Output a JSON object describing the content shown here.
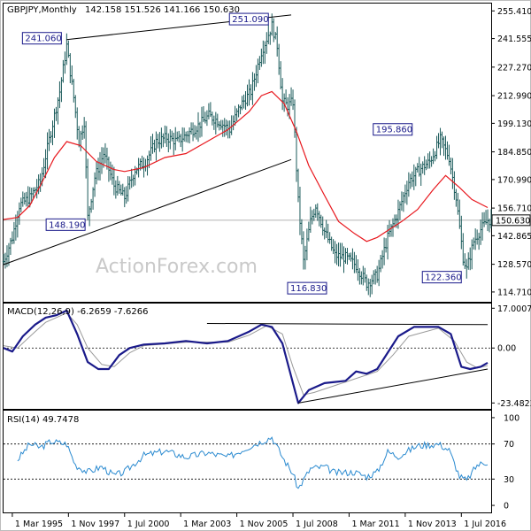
{
  "chart_data": {
    "type": "line",
    "instrument_header": "GBPJPY,Monthly",
    "ohlc_header": "142.158 151.526 141.166 150.630",
    "watermark": "ActionForex.com",
    "time_axis": [
      "1 Mar 1995",
      "1 Nov 1997",
      "1 Jul 2000",
      "1 Mar 2003",
      "1 Nov 2005",
      "1 Jul 2008",
      "1 Mar 2011",
      "1 Nov 2013",
      "1 Jul 2016"
    ],
    "price_panel": {
      "ylim": [
        109.8,
        259.1
      ],
      "y_ticks": [
        "255.410",
        "241.555",
        "227.270",
        "212.990",
        "199.130",
        "184.850",
        "170.990",
        "156.710",
        "142.865",
        "128.570",
        "114.710"
      ],
      "last_value": "150.630",
      "candle_color": "#1a5a5a",
      "ma_color": "#e8181e",
      "annotations": [
        {
          "label": "241.060",
          "x": "1997-10",
          "y": 241.06
        },
        {
          "label": "251.090",
          "x": "2007-07",
          "y": 251.09
        },
        {
          "label": "148.190",
          "x": "1998-10",
          "y": 148.19
        },
        {
          "label": "116.830",
          "x": "2008-10",
          "y": 116.83
        },
        {
          "label": "195.860",
          "x": "2014-07",
          "y": 195.86
        },
        {
          "label": "122.360",
          "x": "2016-10",
          "y": 122.36
        }
      ],
      "trendlines": [
        {
          "x1": "1997-10",
          "y1": 241.06,
          "x2": "2008-06",
          "y2": 253.4
        },
        {
          "x1": "1994-10",
          "y1": 128.4,
          "x2": "2008-06",
          "y2": 181.0
        }
      ],
      "series": [
        {
          "name": "close",
          "values": [
            {
              "x": "1994-10",
              "y": 130.0
            },
            {
              "x": "1995-03",
              "y": 142.0
            },
            {
              "x": "1995-07",
              "y": 158.0
            },
            {
              "x": "1996-01",
              "y": 162.0
            },
            {
              "x": "1996-07",
              "y": 170.0
            },
            {
              "x": "1997-01",
              "y": 195.0
            },
            {
              "x": "1997-06",
              "y": 215.0
            },
            {
              "x": "1997-10",
              "y": 238.0
            },
            {
              "x": "1998-02",
              "y": 212.0
            },
            {
              "x": "1998-05",
              "y": 190.0
            },
            {
              "x": "1998-08",
              "y": 200.0
            },
            {
              "x": "1998-10",
              "y": 152.0
            },
            {
              "x": "1999-02",
              "y": 172.0
            },
            {
              "x": "1999-07",
              "y": 184.0
            },
            {
              "x": "2000-01",
              "y": 168.0
            },
            {
              "x": "2000-07",
              "y": 162.0
            },
            {
              "x": "2001-01",
              "y": 176.0
            },
            {
              "x": "2001-07",
              "y": 180.0
            },
            {
              "x": "2002-01",
              "y": 190.0
            },
            {
              "x": "2002-07",
              "y": 192.0
            },
            {
              "x": "2003-01",
              "y": 190.0
            },
            {
              "x": "2003-07",
              "y": 194.0
            },
            {
              "x": "2004-01",
              "y": 198.0
            },
            {
              "x": "2004-07",
              "y": 203.0
            },
            {
              "x": "2005-01",
              "y": 200.0
            },
            {
              "x": "2005-07",
              "y": 196.0
            },
            {
              "x": "2006-01",
              "y": 208.0
            },
            {
              "x": "2006-07",
              "y": 215.0
            },
            {
              "x": "2007-01",
              "y": 235.0
            },
            {
              "x": "2007-07",
              "y": 248.0
            },
            {
              "x": "2007-10",
              "y": 238.0
            },
            {
              "x": "2008-01",
              "y": 210.0
            },
            {
              "x": "2008-04",
              "y": 208.0
            },
            {
              "x": "2008-07",
              "y": 210.0
            },
            {
              "x": "2008-10",
              "y": 160.0
            },
            {
              "x": "2009-01",
              "y": 130.0
            },
            {
              "x": "2009-05",
              "y": 150.0
            },
            {
              "x": "2009-08",
              "y": 158.0
            },
            {
              "x": "2010-01",
              "y": 145.0
            },
            {
              "x": "2010-07",
              "y": 133.0
            },
            {
              "x": "2011-01",
              "y": 132.0
            },
            {
              "x": "2011-07",
              "y": 128.0
            },
            {
              "x": "2012-01",
              "y": 119.0
            },
            {
              "x": "2012-07",
              "y": 123.0
            },
            {
              "x": "2013-01",
              "y": 142.0
            },
            {
              "x": "2013-07",
              "y": 155.0
            },
            {
              "x": "2014-01",
              "y": 170.0
            },
            {
              "x": "2014-07",
              "y": 176.0
            },
            {
              "x": "2015-01",
              "y": 180.0
            },
            {
              "x": "2015-07",
              "y": 191.0
            },
            {
              "x": "2015-12",
              "y": 182.0
            },
            {
              "x": "2016-04",
              "y": 162.0
            },
            {
              "x": "2016-08",
              "y": 132.0
            },
            {
              "x": "2016-10",
              "y": 126.0
            },
            {
              "x": "2017-02",
              "y": 140.0
            },
            {
              "x": "2017-06",
              "y": 146.0
            },
            {
              "x": "2017-10",
              "y": 150.6
            }
          ]
        },
        {
          "name": "moving average",
          "values": [
            {
              "x": "1994-10",
              "y": 151.0
            },
            {
              "x": "1995-06",
              "y": 152.0
            },
            {
              "x": "1996-01",
              "y": 158.0
            },
            {
              "x": "1996-07",
              "y": 168.0
            },
            {
              "x": "1997-03",
              "y": 182.0
            },
            {
              "x": "1997-10",
              "y": 190.0
            },
            {
              "x": "1998-06",
              "y": 188.0
            },
            {
              "x": "1999-03",
              "y": 180.0
            },
            {
              "x": "2000-01",
              "y": 176.0
            },
            {
              "x": "2000-07",
              "y": 175.0
            },
            {
              "x": "2001-06",
              "y": 177.0
            },
            {
              "x": "2002-06",
              "y": 182.0
            },
            {
              "x": "2003-06",
              "y": 184.0
            },
            {
              "x": "2004-06",
              "y": 190.0
            },
            {
              "x": "2005-06",
              "y": 196.0
            },
            {
              "x": "2006-06",
              "y": 205.0
            },
            {
              "x": "2007-01",
              "y": 213.0
            },
            {
              "x": "2007-07",
              "y": 215.0
            },
            {
              "x": "2008-02",
              "y": 209.0
            },
            {
              "x": "2008-09",
              "y": 195.0
            },
            {
              "x": "2009-04",
              "y": 178.0
            },
            {
              "x": "2010-01",
              "y": 163.0
            },
            {
              "x": "2010-09",
              "y": 150.0
            },
            {
              "x": "2011-06",
              "y": 144.0
            },
            {
              "x": "2012-01",
              "y": 140.0
            },
            {
              "x": "2012-07",
              "y": 142.0
            },
            {
              "x": "2013-02",
              "y": 146.0
            },
            {
              "x": "2013-09",
              "y": 150.0
            },
            {
              "x": "2014-06",
              "y": 156.0
            },
            {
              "x": "2015-03",
              "y": 166.0
            },
            {
              "x": "2015-10",
              "y": 173.0
            },
            {
              "x": "2016-06",
              "y": 167.0
            },
            {
              "x": "2017-01",
              "y": 161.0
            },
            {
              "x": "2017-10",
              "y": 157.0
            }
          ]
        }
      ]
    },
    "macd_panel": {
      "label": "MACD(12,26,9) -6.2659 -7.6266",
      "ylim": [
        -26.0,
        19.0
      ],
      "y_ticks": [
        "17.0007",
        "0.00",
        "-23.4823"
      ],
      "macd_color": "#1a1a8a",
      "signal_color": "#9a9a9a",
      "trendlines": [
        {
          "x1": "2004-06",
          "y1": 10.5,
          "x2": "2017-10",
          "y2": 10.0
        },
        {
          "x1": "2008-10",
          "y1": -23.5,
          "x2": "2017-10",
          "y2": -9.0
        }
      ],
      "series": [
        {
          "name": "MACD",
          "values": [
            {
              "x": "1994-10",
              "y": 0.0
            },
            {
              "x": "1995-03",
              "y": -1.5
            },
            {
              "x": "1995-09",
              "y": 5.0
            },
            {
              "x": "1996-04",
              "y": 10.0
            },
            {
              "x": "1996-10",
              "y": 13.0
            },
            {
              "x": "1997-04",
              "y": 14.0
            },
            {
              "x": "1997-10",
              "y": 16.0
            },
            {
              "x": "1998-04",
              "y": 6.0
            },
            {
              "x": "1998-10",
              "y": -6.0
            },
            {
              "x": "1999-04",
              "y": -9.0
            },
            {
              "x": "1999-10",
              "y": -9.0
            },
            {
              "x": "2000-04",
              "y": -3.0
            },
            {
              "x": "2000-10",
              "y": 0.0
            },
            {
              "x": "2001-06",
              "y": 1.5
            },
            {
              "x": "2002-06",
              "y": 2.0
            },
            {
              "x": "2003-06",
              "y": 3.0
            },
            {
              "x": "2004-06",
              "y": 2.0
            },
            {
              "x": "2005-06",
              "y": 3.0
            },
            {
              "x": "2006-06",
              "y": 7.0
            },
            {
              "x": "2007-01",
              "y": 10.0
            },
            {
              "x": "2007-07",
              "y": 9.0
            },
            {
              "x": "2008-01",
              "y": 2.0
            },
            {
              "x": "2008-07",
              "y": -15.0
            },
            {
              "x": "2008-10",
              "y": -23.5
            },
            {
              "x": "2009-04",
              "y": -18.0
            },
            {
              "x": "2010-01",
              "y": -15.0
            },
            {
              "x": "2011-01",
              "y": -14.0
            },
            {
              "x": "2011-07",
              "y": -10.0
            },
            {
              "x": "2012-01",
              "y": -11.0
            },
            {
              "x": "2012-07",
              "y": -9.0
            },
            {
              "x": "2013-01",
              "y": -2.0
            },
            {
              "x": "2013-07",
              "y": 5.0
            },
            {
              "x": "2014-04",
              "y": 9.0
            },
            {
              "x": "2015-06",
              "y": 9.0
            },
            {
              "x": "2016-01",
              "y": 6.0
            },
            {
              "x": "2016-07",
              "y": -8.0
            },
            {
              "x": "2016-12",
              "y": -9.0
            },
            {
              "x": "2017-06",
              "y": -8.0
            },
            {
              "x": "2017-10",
              "y": -6.3
            }
          ]
        },
        {
          "name": "signal",
          "values": [
            {
              "x": "1994-10",
              "y": 1.0
            },
            {
              "x": "1995-06",
              "y": 0.0
            },
            {
              "x": "1996-04",
              "y": 7.0
            },
            {
              "x": "1996-10",
              "y": 11.0
            },
            {
              "x": "1997-04",
              "y": 13.0
            },
            {
              "x": "1997-10",
              "y": 15.0
            },
            {
              "x": "1998-04",
              "y": 10.0
            },
            {
              "x": "1998-10",
              "y": 0.0
            },
            {
              "x": "1999-06",
              "y": -7.0
            },
            {
              "x": "2000-01",
              "y": -8.0
            },
            {
              "x": "2000-10",
              "y": -2.0
            },
            {
              "x": "2001-06",
              "y": 1.0
            },
            {
              "x": "2003-06",
              "y": 2.5
            },
            {
              "x": "2005-06",
              "y": 2.5
            },
            {
              "x": "2006-06",
              "y": 5.5
            },
            {
              "x": "2007-04",
              "y": 9.5
            },
            {
              "x": "2008-01",
              "y": 6.0
            },
            {
              "x": "2008-07",
              "y": -8.0
            },
            {
              "x": "2009-01",
              "y": -20.0
            },
            {
              "x": "2009-07",
              "y": -19.0
            },
            {
              "x": "2011-01",
              "y": -14.5
            },
            {
              "x": "2012-07",
              "y": -10.0
            },
            {
              "x": "2013-04",
              "y": -3.0
            },
            {
              "x": "2014-01",
              "y": 5.0
            },
            {
              "x": "2015-06",
              "y": 8.5
            },
            {
              "x": "2016-03",
              "y": 3.0
            },
            {
              "x": "2016-10",
              "y": -6.0
            },
            {
              "x": "2017-04",
              "y": -8.5
            },
            {
              "x": "2017-10",
              "y": -7.6
            }
          ]
        }
      ]
    },
    "rsi_panel": {
      "label": "RSI(14) 49.7478",
      "ylim": [
        0,
        100
      ],
      "y_ticks": [
        "100",
        "70",
        "30",
        "0"
      ],
      "levels": [
        70,
        30
      ],
      "color": "#2a8ad0",
      "series": [
        {
          "name": "RSI(14)",
          "values": [
            {
              "x": "1995-06",
              "y": 52.0
            },
            {
              "x": "1996-01",
              "y": 70.0
            },
            {
              "x": "1996-07",
              "y": 66.0
            },
            {
              "x": "1997-01",
              "y": 73.0
            },
            {
              "x": "1997-10",
              "y": 70.0
            },
            {
              "x": "1998-03",
              "y": 46.0
            },
            {
              "x": "1998-10",
              "y": 38.0
            },
            {
              "x": "1999-06",
              "y": 44.0
            },
            {
              "x": "2000-01",
              "y": 34.0
            },
            {
              "x": "2000-07",
              "y": 38.0
            },
            {
              "x": "2001-06",
              "y": 57.0
            },
            {
              "x": "2002-06",
              "y": 62.0
            },
            {
              "x": "2003-06",
              "y": 55.0
            },
            {
              "x": "2004-06",
              "y": 60.0
            },
            {
              "x": "2005-06",
              "y": 55.0
            },
            {
              "x": "2006-06",
              "y": 67.0
            },
            {
              "x": "2007-07",
              "y": 78.0
            },
            {
              "x": "2008-01",
              "y": 55.0
            },
            {
              "x": "2008-07",
              "y": 36.0
            },
            {
              "x": "2008-10",
              "y": 19.0
            },
            {
              "x": "2009-05",
              "y": 42.0
            },
            {
              "x": "2010-01",
              "y": 44.0
            },
            {
              "x": "2010-07",
              "y": 37.0
            },
            {
              "x": "2011-06",
              "y": 38.0
            },
            {
              "x": "2012-01",
              "y": 33.0
            },
            {
              "x": "2012-07",
              "y": 38.0
            },
            {
              "x": "2013-01",
              "y": 61.0
            },
            {
              "x": "2013-07",
              "y": 56.0
            },
            {
              "x": "2014-06",
              "y": 68.0
            },
            {
              "x": "2015-06",
              "y": 70.0
            },
            {
              "x": "2015-12",
              "y": 63.0
            },
            {
              "x": "2016-06",
              "y": 33.0
            },
            {
              "x": "2016-10",
              "y": 28.0
            },
            {
              "x": "2017-04",
              "y": 46.0
            },
            {
              "x": "2017-10",
              "y": 49.7
            }
          ]
        }
      ]
    }
  }
}
